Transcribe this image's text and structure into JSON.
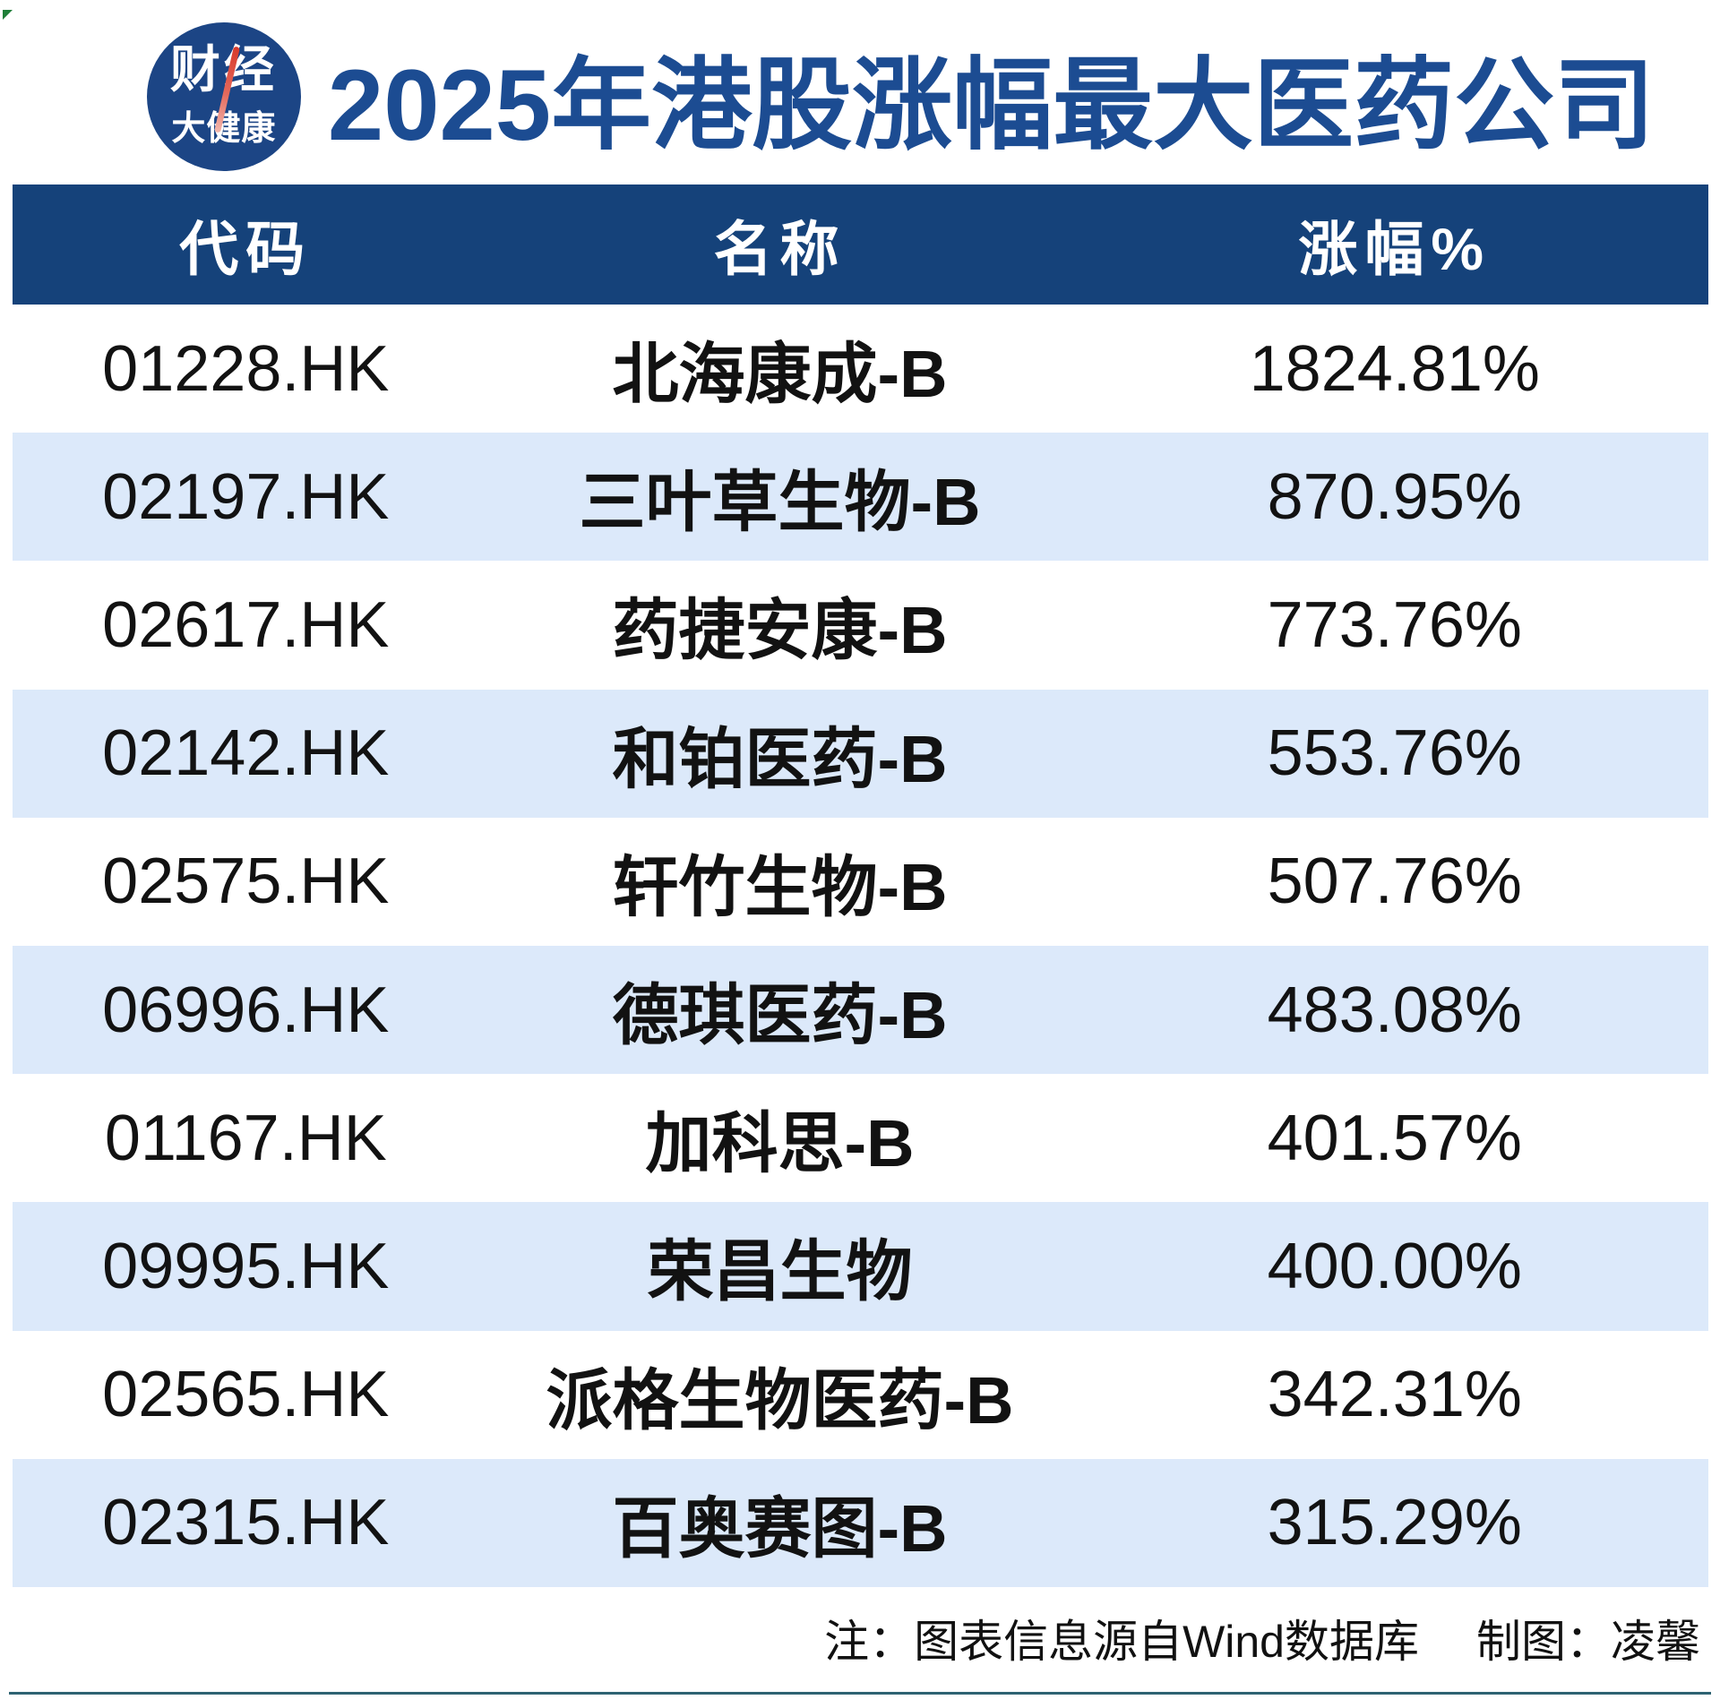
{
  "page": {
    "title": "2025年港股涨幅最大医药公司",
    "logo": {
      "line1": "财经",
      "line2": "大健康"
    },
    "footer": {
      "note": "注：图表信息源自Wind数据库",
      "credit": "制图：凌馨"
    }
  },
  "colors": {
    "header_navy": "#15427a",
    "title_blue": "#1c4c92",
    "logo_blue": "#1c4585",
    "row_alt_blue": "#dce9fa",
    "logo_slash_red": "#d7392a",
    "bottom_rule_teal": "#2e6372",
    "artifact_green": "#1f7e38"
  },
  "chart_data": {
    "type": "table",
    "title": "2025年港股涨幅最大医药公司",
    "columns": [
      "代码",
      "名称",
      "涨幅%"
    ],
    "rows": [
      [
        "01228.HK",
        "北海康成-B",
        "1824.81%"
      ],
      [
        "02197.HK",
        "三叶草生物-B",
        "870.95%"
      ],
      [
        "02617.HK",
        "药捷安康-B",
        "773.76%"
      ],
      [
        "02142.HK",
        "和铂医药-B",
        "553.76%"
      ],
      [
        "02575.HK",
        "轩竹生物-B",
        "507.76%"
      ],
      [
        "06996.HK",
        "德琪医药-B",
        "483.08%"
      ],
      [
        "01167.HK",
        "加科思-B",
        "401.57%"
      ],
      [
        "09995.HK",
        "荣昌生物",
        "400.00%"
      ],
      [
        "02565.HK",
        "派格生物医药-B",
        "342.31%"
      ],
      [
        "02315.HK",
        "百奥赛图-B",
        "315.29%"
      ]
    ],
    "layout": {
      "row_striping": "white/light-blue alternating",
      "value_format": "percent"
    }
  }
}
